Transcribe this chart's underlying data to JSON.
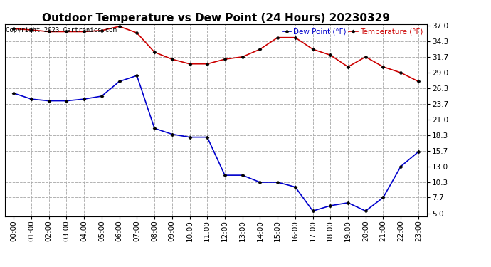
{
  "title": "Outdoor Temperature vs Dew Point (24 Hours) 20230329",
  "copyright": "Copyright 2023 Cartronics.com",
  "legend_dew": "Dew Point (°F)",
  "legend_temp": "Temperature (°F)",
  "hours": [
    "00:00",
    "01:00",
    "02:00",
    "03:00",
    "04:00",
    "05:00",
    "06:00",
    "07:00",
    "08:00",
    "09:00",
    "10:00",
    "11:00",
    "12:00",
    "13:00",
    "14:00",
    "15:00",
    "16:00",
    "17:00",
    "18:00",
    "19:00",
    "20:00",
    "21:00",
    "22:00",
    "23:00"
  ],
  "temperature": [
    36.5,
    36.3,
    36.0,
    36.0,
    36.0,
    36.2,
    36.9,
    35.8,
    32.5,
    31.3,
    30.5,
    30.5,
    31.3,
    31.7,
    33.0,
    35.0,
    35.0,
    33.0,
    32.0,
    30.0,
    31.7,
    30.0,
    29.0,
    27.5
  ],
  "dew_point": [
    25.5,
    24.5,
    24.2,
    24.2,
    24.5,
    25.0,
    27.5,
    28.5,
    19.5,
    18.5,
    18.0,
    18.0,
    11.5,
    11.5,
    10.3,
    10.3,
    9.5,
    5.4,
    6.3,
    6.8,
    5.4,
    7.7,
    13.0,
    15.5
  ],
  "temp_color": "#cc0000",
  "dew_color": "#0000cc",
  "ylim_min": 5.0,
  "ylim_max": 37.0,
  "yticks": [
    5.0,
    7.7,
    10.3,
    13.0,
    15.7,
    18.3,
    21.0,
    23.7,
    26.3,
    29.0,
    31.7,
    34.3,
    37.0
  ],
  "bg_color": "#ffffff",
  "grid_color": "#aaaaaa",
  "marker": "D",
  "marker_size": 2.5,
  "line_width": 1.2,
  "title_fontsize": 11,
  "tick_fontsize": 7.5,
  "copyright_fontsize": 6.5
}
